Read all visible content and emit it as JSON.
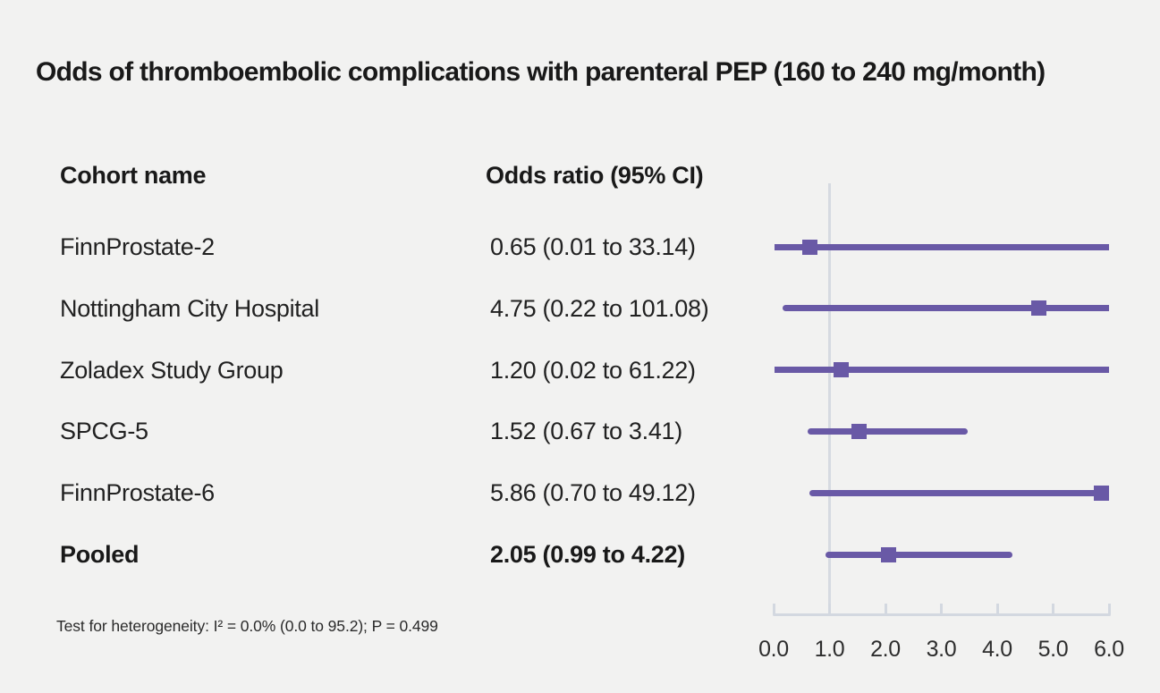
{
  "title": "Odds of thromboembolic complications with parenteral PEP (160 to 240 mg/month)",
  "table": {
    "col1_header": "Cohort name",
    "col2_header": "Odds ratio (95% CI)"
  },
  "footnote": "Test for heterogeneity: I² = 0.0% (0.0 to 95.2); P = 0.499",
  "chart_data": {
    "type": "forest",
    "title": "Odds of thromboembolic complications with parenteral PEP (160 to 240 mg/month)",
    "xlim": [
      0,
      6
    ],
    "xticks": [
      0,
      1,
      2,
      3,
      4,
      5,
      6
    ],
    "xtick_labels": [
      "0.0",
      "1.0",
      "2.0",
      "3.0",
      "4.0",
      "5.0",
      "6.0"
    ],
    "reference_line": 1.0,
    "grid": false,
    "studies": [
      {
        "name": "FinnProstate-2",
        "or": 0.65,
        "ci_low": 0.01,
        "ci_high": 33.14,
        "label": "0.65 (0.01 to 33.14)",
        "bold": false
      },
      {
        "name": "Nottingham City Hospital",
        "or": 4.75,
        "ci_low": 0.22,
        "ci_high": 101.08,
        "label": "4.75 (0.22 to 101.08)",
        "bold": false
      },
      {
        "name": "Zoladex Study Group",
        "or": 1.2,
        "ci_low": 0.02,
        "ci_high": 61.22,
        "label": "1.20 (0.02 to 61.22)",
        "bold": false
      },
      {
        "name": "SPCG-5",
        "or": 1.52,
        "ci_low": 0.67,
        "ci_high": 3.41,
        "label": "1.52 (0.67 to 3.41)",
        "bold": false
      },
      {
        "name": "FinnProstate-6",
        "or": 5.86,
        "ci_low": 0.7,
        "ci_high": 49.12,
        "label": "5.86 (0.70 to 49.12)",
        "bold": false
      },
      {
        "name": "Pooled",
        "or": 2.05,
        "ci_low": 0.99,
        "ci_high": 4.22,
        "label": "2.05 (0.99 to 4.22)",
        "bold": true
      }
    ],
    "colors": {
      "marker": "#6959a6",
      "ci_line": "#6959a6",
      "axis": "#d3d8e0",
      "reference": "#d6dae1",
      "background": "#f2f2f1",
      "text": "#212121"
    }
  }
}
